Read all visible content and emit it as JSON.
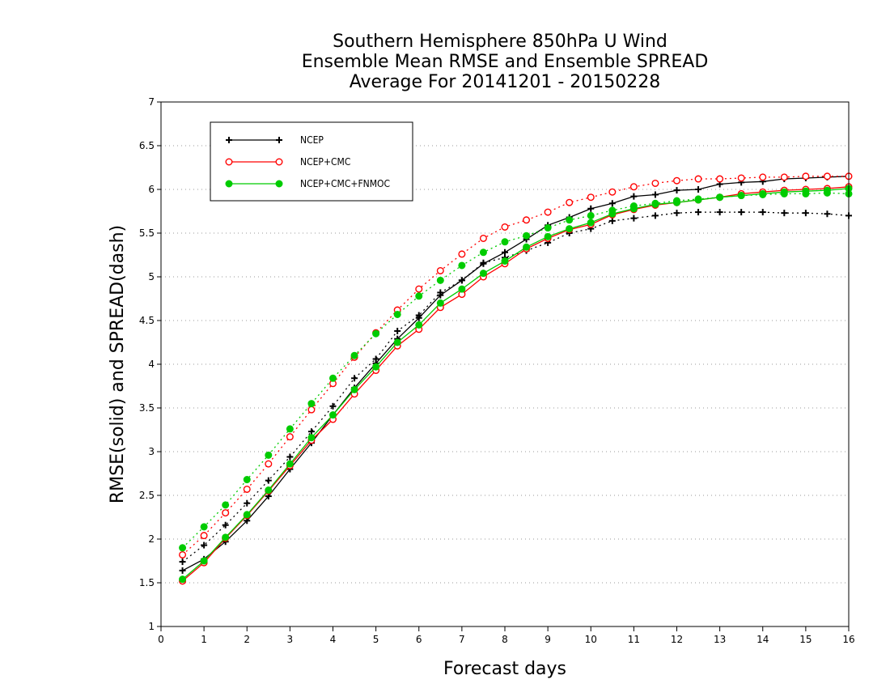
{
  "chart_data": {
    "type": "line",
    "title_lines": [
      "Southern Hemisphere 850hPa U Wind",
      "Ensemble Mean RMSE and Ensemble SPREAD",
      "Average For 20141201 - 20150228"
    ],
    "xlabel": "Forecast days",
    "ylabel": "RMSE(solid) and SPREAD(dash)",
    "xlim": [
      0,
      16
    ],
    "ylim": [
      1,
      7
    ],
    "xticks": [
      0,
      1,
      2,
      3,
      4,
      5,
      6,
      7,
      8,
      9,
      10,
      11,
      12,
      13,
      14,
      15,
      16
    ],
    "yticks": [
      1,
      1.5,
      2,
      2.5,
      3,
      3.5,
      4,
      4.5,
      5,
      5.5,
      6,
      6.5,
      7
    ],
    "grid": "horizontal dotted",
    "legend_position": "top-left",
    "x": [
      0.5,
      1,
      1.5,
      2,
      2.5,
      3,
      3.5,
      4,
      4.5,
      5,
      5.5,
      6,
      6.5,
      7,
      7.5,
      8,
      8.5,
      9,
      9.5,
      10,
      10.5,
      11,
      11.5,
      12,
      12.5,
      13,
      13.5,
      14,
      14.5,
      15,
      15.5,
      16
    ],
    "series": [
      {
        "name": "NCEP",
        "color": "#000000",
        "marker": "plus",
        "rmse": [
          1.64,
          1.77,
          1.97,
          2.21,
          2.49,
          2.8,
          3.1,
          3.42,
          3.73,
          4.01,
          4.29,
          4.53,
          4.79,
          4.96,
          5.15,
          5.28,
          5.43,
          5.59,
          5.68,
          5.78,
          5.84,
          5.92,
          5.94,
          5.99,
          6.0,
          6.06,
          6.08,
          6.09,
          6.12,
          6.13,
          6.14,
          6.15
        ],
        "spread": [
          1.74,
          1.93,
          2.16,
          2.41,
          2.67,
          2.94,
          3.23,
          3.52,
          3.84,
          4.06,
          4.38,
          4.56,
          4.82,
          4.96,
          5.16,
          5.22,
          5.3,
          5.39,
          5.5,
          5.55,
          5.64,
          5.67,
          5.7,
          5.73,
          5.74,
          5.74,
          5.74,
          5.74,
          5.73,
          5.73,
          5.72,
          5.7
        ]
      },
      {
        "name": "NCEP+CMC",
        "color": "#ff0000",
        "marker": "open-circle",
        "rmse": [
          1.52,
          1.73,
          2.01,
          2.27,
          2.55,
          2.84,
          3.13,
          3.37,
          3.66,
          3.93,
          4.21,
          4.4,
          4.65,
          4.8,
          5.0,
          5.15,
          5.32,
          5.44,
          5.54,
          5.6,
          5.71,
          5.77,
          5.82,
          5.85,
          5.88,
          5.91,
          5.95,
          5.97,
          5.99,
          6.0,
          6.01,
          6.03
        ],
        "spread": [
          1.82,
          2.04,
          2.3,
          2.57,
          2.86,
          3.17,
          3.48,
          3.78,
          4.08,
          4.36,
          4.62,
          4.86,
          5.07,
          5.26,
          5.44,
          5.57,
          5.65,
          5.74,
          5.85,
          5.91,
          5.97,
          6.03,
          6.07,
          6.1,
          6.12,
          6.12,
          6.13,
          6.14,
          6.14,
          6.15,
          6.15,
          6.15
        ]
      },
      {
        "name": "NCEP+CMC+FNMOC",
        "color": "#00cc00",
        "marker": "filled-circle",
        "rmse": [
          1.54,
          1.75,
          2.02,
          2.28,
          2.56,
          2.86,
          3.16,
          3.42,
          3.71,
          3.97,
          4.25,
          4.45,
          4.7,
          4.86,
          5.04,
          5.18,
          5.34,
          5.46,
          5.55,
          5.62,
          5.72,
          5.78,
          5.83,
          5.85,
          5.88,
          5.91,
          5.93,
          5.95,
          5.97,
          5.98,
          5.99,
          6.01
        ],
        "spread": [
          1.9,
          2.14,
          2.39,
          2.68,
          2.96,
          3.26,
          3.55,
          3.84,
          4.1,
          4.35,
          4.57,
          4.78,
          4.96,
          5.13,
          5.28,
          5.4,
          5.47,
          5.56,
          5.65,
          5.7,
          5.76,
          5.81,
          5.84,
          5.87,
          5.89,
          5.91,
          5.93,
          5.94,
          5.95,
          5.95,
          5.96,
          5.95
        ]
      }
    ]
  }
}
